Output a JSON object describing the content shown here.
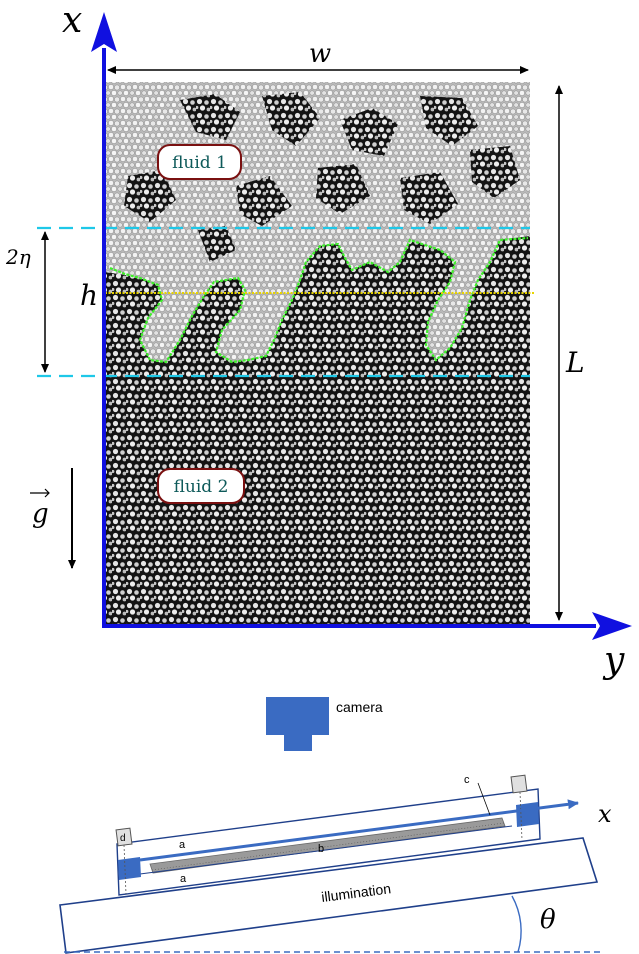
{
  "figure": {
    "axes": {
      "x_label": "x",
      "y_label": "y"
    },
    "dims": {
      "width_label": "w",
      "length_label": "L",
      "interface_label": "h",
      "mixing_label": "2η",
      "gravity_label": "g"
    },
    "regions": {
      "fluid_top": "fluid 1",
      "fluid_bottom": "fluid 2"
    },
    "colors": {
      "axis_blue": "#1010e0",
      "dashed_cyan": "#1ec8e8",
      "interface_yellow": "#e8d400",
      "contour_green": "#3ef02a",
      "badge_border": "#7a1010",
      "badge_text": "#0e5a5a",
      "device_blue": "#3a6bc2"
    }
  },
  "setup": {
    "camera_label": "camera",
    "illumination_label": "illumination",
    "x_label": "x",
    "theta_label": "θ",
    "part_labels": {
      "a_top": "a",
      "a_bottom": "a",
      "b": "b",
      "c": "c",
      "d": "d"
    }
  }
}
